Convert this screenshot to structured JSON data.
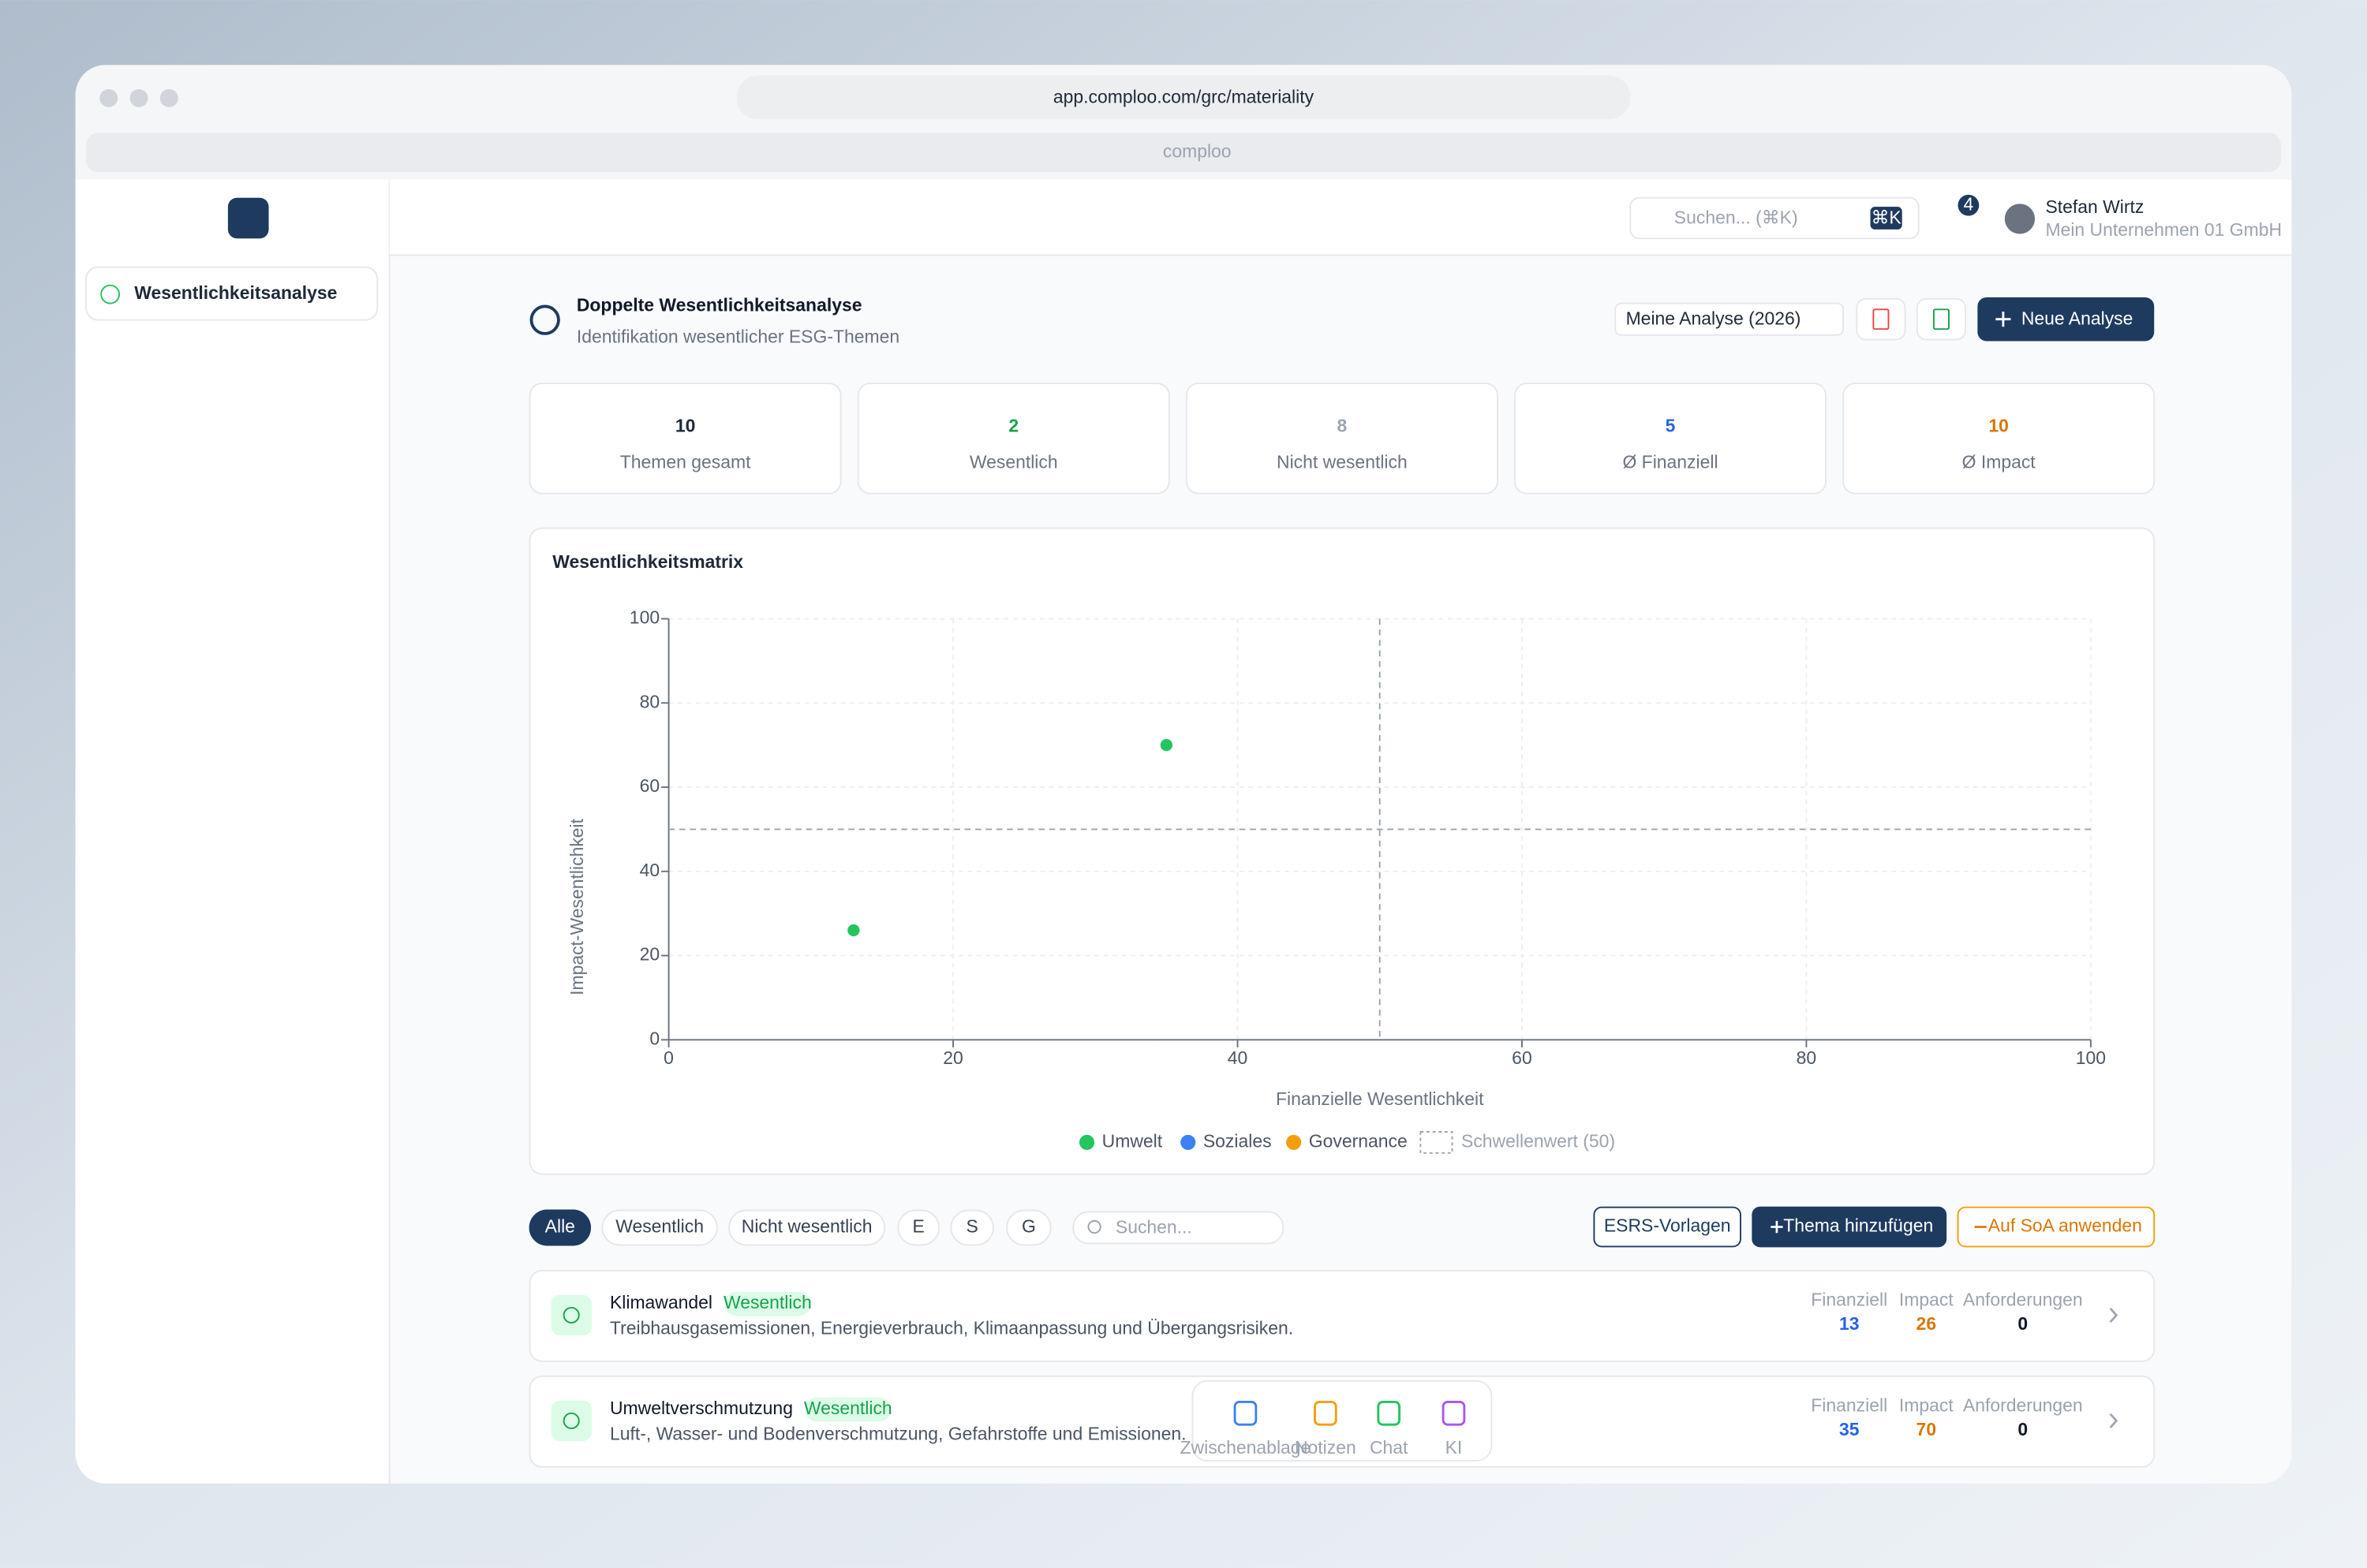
{
  "browser": {
    "url": "app.comploo.com/grc/materiality",
    "tab": "comploo"
  },
  "sidebar": {
    "module": "Wesentlichkeitsanalyse"
  },
  "topbar": {
    "search": "Suchen... (⌘K)",
    "shortcut": "⌘K",
    "notifications": 4,
    "user": "Stefan Wirtz",
    "company": "Mein Unternehmen 01 GmbH"
  },
  "header": {
    "title": "Doppelte Wesentlichkeitsanalyse",
    "subtitle": "Identifikation wesentlicher ESG-Themen",
    "analysis": "Meine Analyse (2026)",
    "new_button": "Neue Analyse"
  },
  "stats": [
    {
      "value": 10,
      "label": "Themen gesamt",
      "color": "#1e293b"
    },
    {
      "value": 2,
      "label": "Wesentlich",
      "color": "#16a34a"
    },
    {
      "value": 8,
      "label": "Nicht wesentlich",
      "color": "#9ca3af"
    },
    {
      "value": 5,
      "label": "Ø Finanziell",
      "color": "#2563eb"
    },
    {
      "value": 10,
      "label": "Ø Impact",
      "color": "#d97706"
    }
  ],
  "chart_data": {
    "type": "scatter",
    "title": "Wesentlichkeitsmatrix",
    "x_label": "Finanzielle Wesentlichkeit",
    "y_label": "Impact-Wesentlichkeit",
    "xlim": [
      0,
      100
    ],
    "ylim": [
      0,
      100
    ],
    "xticks": [
      0,
      20,
      40,
      60,
      80,
      100
    ],
    "yticks": [
      0,
      20,
      40,
      60,
      80,
      100
    ],
    "grid": true,
    "threshold": 50,
    "threshold_label": "Schwellenwert (50)",
    "series": [
      {
        "name": "Umwelt",
        "color": "#22c55e",
        "x": [
          13,
          35
        ],
        "values": [
          26,
          70
        ]
      },
      {
        "name": "Soziales",
        "color": "#3b82f6",
        "x": [],
        "values": []
      },
      {
        "name": "Governance",
        "color": "#f59e0b",
        "x": [],
        "values": []
      }
    ]
  },
  "filters": {
    "chips": [
      "Alle",
      "Wesentlich",
      "Nicht wesentlich",
      "E",
      "S",
      "G"
    ],
    "search": "Suchen...",
    "actions": [
      "ESRS-Vorlagen",
      "Thema hinzufügen",
      "Auf SoA anwenden"
    ]
  },
  "topics": [
    {
      "name": "Klimawandel",
      "badge": "Wesentlich",
      "description": "Treibhausgasemissionen, Energieverbrauch, Klimaanpassung und Übergangsrisiken.",
      "financial_label": "Finanziell",
      "financial": 13,
      "impact_label": "Impact",
      "impact": 26,
      "requirements_label": "Anforderungen",
      "requirements": 0
    },
    {
      "name": "Umweltverschmutzung",
      "badge": "Wesentlich",
      "description": "Luft-, Wasser- und Bodenverschmutzung, Gefahrstoffe und Emissionen.",
      "financial_label": "Finanziell",
      "financial": 35,
      "impact_label": "Impact",
      "impact": 70,
      "requirements_label": "Anforderungen",
      "requirements": 0
    }
  ],
  "dock": [
    "Zwischenablage",
    "Notizen",
    "Chat",
    "KI"
  ]
}
